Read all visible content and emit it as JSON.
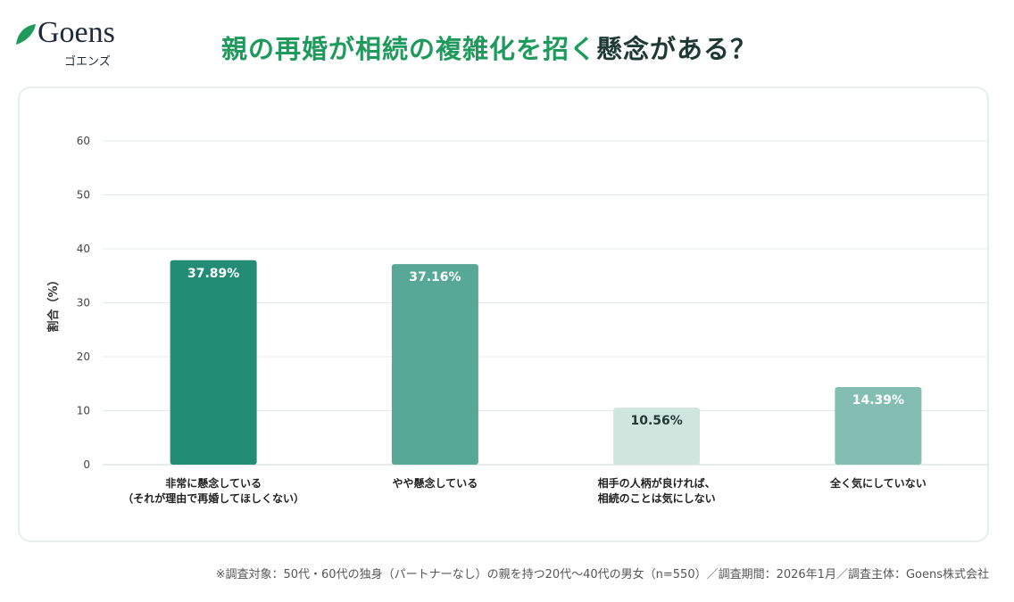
{
  "logo": {
    "name": "Goens",
    "kana": "ゴエンズ"
  },
  "title": {
    "highlight": "親の再婚が相続の複雑化を招く",
    "rest": "懸念がある？"
  },
  "footnote": "※調査対象：50代・60代の独身（パートナーなし）の親を持つ20代〜40代の男女（n=550）／調査期間：2026年1月／調査主体：Goens株式会社",
  "colors": {
    "brand": "#1e9a5c",
    "bars": [
      "#238c74",
      "#58a898",
      "#cfe6df",
      "#84beb2"
    ]
  },
  "chart_data": {
    "type": "bar",
    "categories": [
      [
        "非常に懸念している",
        "（それが理由で再婚してほしくない）"
      ],
      [
        "やや懸念している"
      ],
      [
        "相手の人柄が良ければ、",
        "相続のことは気にしない"
      ],
      [
        "全く気にしていない"
      ]
    ],
    "values": [
      37.89,
      37.16,
      10.56,
      14.39
    ],
    "data_labels": [
      "37.89%",
      "37.16%",
      "10.56%",
      "14.39%"
    ],
    "ylabel": "割合（%）",
    "ylim": [
      0,
      60
    ],
    "yticks": [
      0,
      10,
      20,
      30,
      40,
      50,
      60
    ],
    "grid": true
  }
}
